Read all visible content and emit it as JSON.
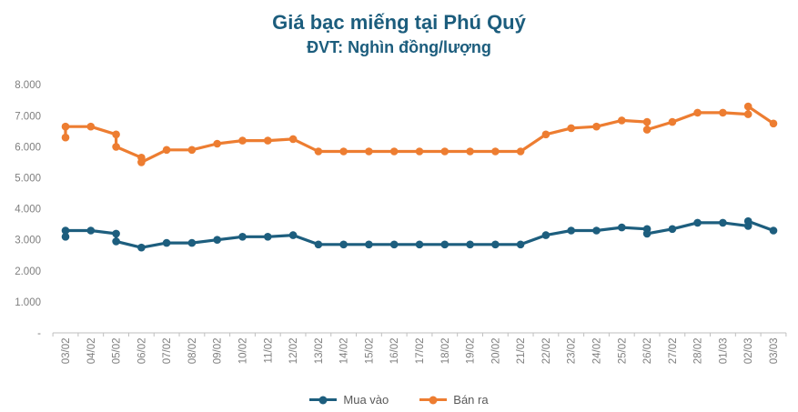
{
  "title": "Giá bạc miếng tại Phú Quý",
  "subtitle": "ĐVT: Nghìn đồng/lượng",
  "colors": {
    "title": "#1C5D7D",
    "buy_series": "#1D5E7E",
    "sell_series": "#ED7D31",
    "axis_line": "#BFBFBF",
    "tick_label": "#7F7F7F",
    "legend_text": "#595959",
    "background": "#FFFFFF"
  },
  "legend": [
    {
      "label": "Mua vào"
    },
    {
      "label": "Bán ra"
    }
  ],
  "chart_data": {
    "type": "line",
    "title": "Giá bạc miếng tại Phú Quý",
    "subtitle": "ĐVT: Nghìn đồng/lượng",
    "grid": false,
    "legend_position": "bottom",
    "categories": [
      "03/02",
      "04/02",
      "05/02",
      "06/02",
      "07/02",
      "08/02",
      "09/02",
      "10/02",
      "11/02",
      "12/02",
      "13/02",
      "14/02",
      "15/02",
      "16/02",
      "17/02",
      "18/02",
      "19/02",
      "20/02",
      "21/02",
      "22/02",
      "23/02",
      "24/02",
      "25/02",
      "26/02",
      "27/02",
      "28/02",
      "01/03",
      "02/03",
      "03/03"
    ],
    "y_axis": {
      "min": 0,
      "max": 8000,
      "tick_interval": 1000,
      "tick_labels": [
        "-",
        "1.000",
        "2.000",
        "3.000",
        "4.000",
        "5.000",
        "6.000",
        "7.000",
        "8.000"
      ]
    },
    "series": [
      {
        "name": "Mua vào",
        "color": "#1D5E7E",
        "points": [
          [
            0,
            3100
          ],
          [
            0,
            3300
          ],
          [
            1,
            3300
          ],
          [
            2,
            3200
          ],
          [
            2,
            2950
          ],
          [
            3,
            2750
          ],
          [
            4,
            2900
          ],
          [
            5,
            2900
          ],
          [
            6,
            3000
          ],
          [
            7,
            3100
          ],
          [
            8,
            3100
          ],
          [
            9,
            3150
          ],
          [
            10,
            2850
          ],
          [
            11,
            2850
          ],
          [
            12,
            2850
          ],
          [
            13,
            2850
          ],
          [
            14,
            2850
          ],
          [
            15,
            2850
          ],
          [
            16,
            2850
          ],
          [
            17,
            2850
          ],
          [
            18,
            2850
          ],
          [
            19,
            3150
          ],
          [
            20,
            3300
          ],
          [
            21,
            3300
          ],
          [
            22,
            3400
          ],
          [
            23,
            3350
          ],
          [
            23,
            3200
          ],
          [
            24,
            3350
          ],
          [
            25,
            3550
          ],
          [
            26,
            3550
          ],
          [
            27,
            3450
          ],
          [
            27,
            3600
          ],
          [
            28,
            3300
          ]
        ]
      },
      {
        "name": "Bán ra",
        "color": "#ED7D31",
        "points": [
          [
            0,
            6300
          ],
          [
            0,
            6650
          ],
          [
            1,
            6650
          ],
          [
            2,
            6400
          ],
          [
            2,
            6000
          ],
          [
            3,
            5650
          ],
          [
            3,
            5500
          ],
          [
            4,
            5900
          ],
          [
            5,
            5900
          ],
          [
            6,
            6100
          ],
          [
            7,
            6200
          ],
          [
            8,
            6200
          ],
          [
            9,
            6250
          ],
          [
            10,
            5850
          ],
          [
            11,
            5850
          ],
          [
            12,
            5850
          ],
          [
            13,
            5850
          ],
          [
            14,
            5850
          ],
          [
            15,
            5850
          ],
          [
            16,
            5850
          ],
          [
            17,
            5850
          ],
          [
            18,
            5850
          ],
          [
            19,
            6400
          ],
          [
            20,
            6600
          ],
          [
            21,
            6650
          ],
          [
            22,
            6850
          ],
          [
            23,
            6800
          ],
          [
            23,
            6550
          ],
          [
            24,
            6800
          ],
          [
            25,
            7100
          ],
          [
            26,
            7100
          ],
          [
            27,
            7050
          ],
          [
            27,
            7300
          ],
          [
            28,
            6750
          ]
        ]
      }
    ]
  }
}
